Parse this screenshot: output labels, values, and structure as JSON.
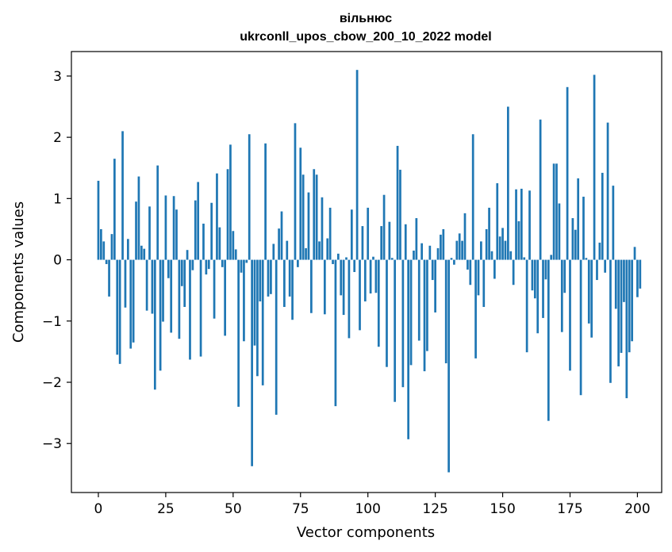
{
  "chart_data": {
    "type": "bar",
    "title": "вільнюс",
    "subtitle": "ukrconll_upos_cbow_200_10_2022 model",
    "xlabel": "Vector components",
    "ylabel": "Components values",
    "xlim": [
      -10,
      209
    ],
    "ylim": [
      -3.8,
      3.4
    ],
    "xticks": [
      0,
      25,
      50,
      75,
      100,
      125,
      150,
      175,
      200
    ],
    "yticks": [
      -3,
      -2,
      -1,
      0,
      1,
      2,
      3
    ],
    "xtick_labels": [
      "0",
      "25",
      "50",
      "75",
      "100",
      "125",
      "150",
      "175",
      "200"
    ],
    "ytick_labels": [
      "−3",
      "−2",
      "−1",
      "0",
      "1",
      "2",
      "3"
    ],
    "bar_color": "#1f77b4",
    "grid": false,
    "values": [
      1.29,
      0.5,
      0.3,
      -0.07,
      -0.6,
      0.42,
      1.65,
      -1.55,
      -1.7,
      2.1,
      -0.78,
      0.34,
      -1.45,
      -1.35,
      0.95,
      1.36,
      0.23,
      0.18,
      -0.83,
      0.87,
      -0.88,
      -2.12,
      1.54,
      -1.81,
      -1.01,
      1.05,
      -0.3,
      -1.19,
      1.04,
      0.82,
      -1.29,
      -0.43,
      -0.77,
      0.16,
      -1.63,
      -0.17,
      0.97,
      1.27,
      -1.58,
      0.59,
      -0.24,
      -0.15,
      0.93,
      -0.96,
      1.41,
      0.53,
      -0.12,
      -1.24,
      1.48,
      1.88,
      0.47,
      0.17,
      -2.4,
      -0.21,
      -1.33,
      -0.05,
      2.05,
      -3.37,
      -1.4,
      -1.9,
      -0.68,
      -2.05,
      1.9,
      -0.6,
      -0.56,
      0.26,
      -2.53,
      0.51,
      0.79,
      -0.77,
      0.31,
      -0.6,
      -0.98,
      2.23,
      -0.12,
      1.83,
      1.39,
      0.19,
      1.1,
      -0.87,
      1.48,
      1.39,
      0.3,
      1.02,
      -0.89,
      0.35,
      0.85,
      -0.07,
      -2.39,
      0.1,
      -0.58,
      -0.9,
      0.04,
      -1.28,
      0.82,
      -0.2,
      3.1,
      -1.15,
      0.55,
      -0.68,
      0.85,
      -0.55,
      0.05,
      -0.54,
      -1.42,
      0.55,
      1.06,
      -1.75,
      0.62,
      0.03,
      -2.32,
      1.86,
      1.47,
      -2.08,
      0.58,
      -2.93,
      -1.72,
      0.15,
      0.68,
      -1.32,
      0.27,
      -1.82,
      -1.49,
      0.23,
      -0.33,
      -0.86,
      0.19,
      0.41,
      0.5,
      -1.69,
      -3.47,
      0.03,
      -0.08,
      0.31,
      0.43,
      0.31,
      0.76,
      -0.16,
      -0.41,
      2.05,
      -1.61,
      -0.58,
      0.3,
      -0.77,
      0.5,
      0.85,
      0.14,
      -0.31,
      1.25,
      0.38,
      0.52,
      0.31,
      2.5,
      0.14,
      -0.41,
      1.15,
      0.63,
      1.16,
      0.04,
      -1.51,
      1.13,
      -0.5,
      -0.63,
      -1.2,
      2.29,
      -0.95,
      -0.32,
      -2.63,
      0.08,
      1.57,
      1.57,
      0.92,
      -1.18,
      -0.54,
      2.82,
      -1.81,
      0.68,
      0.49,
      1.33,
      -2.21,
      1.03,
      0.03,
      -1.04,
      -1.27,
      3.02,
      -0.33,
      0.28,
      1.42,
      -0.21,
      2.24,
      -2.01,
      1.21,
      -0.8,
      -1.74,
      -1.52,
      -0.69,
      -2.26,
      -1.51,
      -1.33,
      0.21,
      -0.61,
      -0.47
    ]
  }
}
